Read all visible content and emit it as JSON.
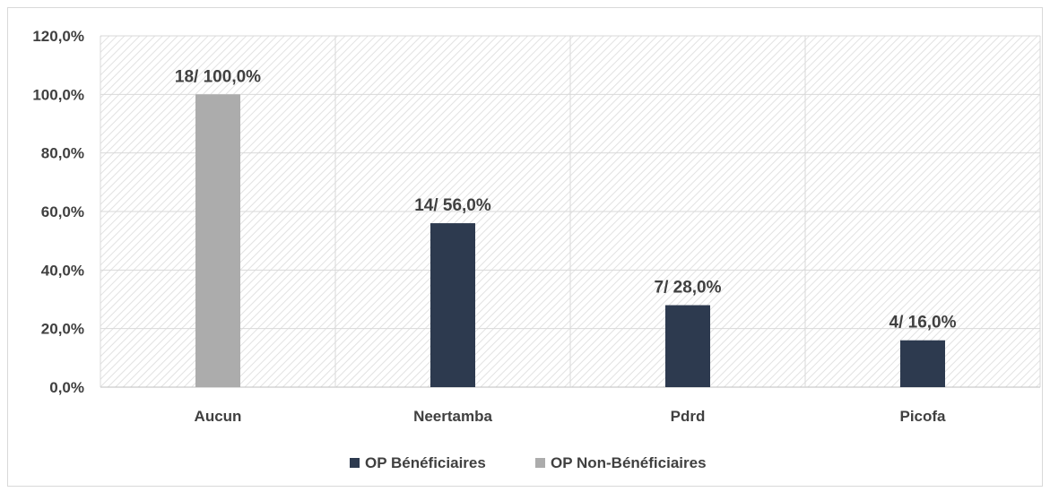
{
  "chart_data": {
    "type": "bar",
    "categories": [
      "Aucun",
      "Neertamba",
      "Pdrd",
      "Picofa"
    ],
    "series": [
      {
        "name": "OP Bénéficiaires",
        "values": [
          null,
          56.0,
          28.0,
          16.0
        ],
        "labels": [
          null,
          "14/ 56,0%",
          "7/ 28,0%",
          "4/ 16,0%"
        ]
      },
      {
        "name": "OP Non-Bénéficiaires",
        "values": [
          100.0,
          null,
          null,
          null
        ],
        "labels": [
          "18/ 100,0%",
          null,
          null,
          null
        ]
      }
    ],
    "y_ticks": [
      "0,0%",
      "20,0%",
      "40,0%",
      "60,0%",
      "80,0%",
      "100,0%",
      "120,0%"
    ],
    "ylim": [
      0,
      120
    ],
    "title": "",
    "xlabel": "",
    "ylabel": "",
    "grid": true,
    "legend_position": "bottom",
    "colors": {
      "OP Bénéficiaires": "#2d3a4f",
      "OP Non-Bénéficiaires": "#acacac"
    }
  }
}
